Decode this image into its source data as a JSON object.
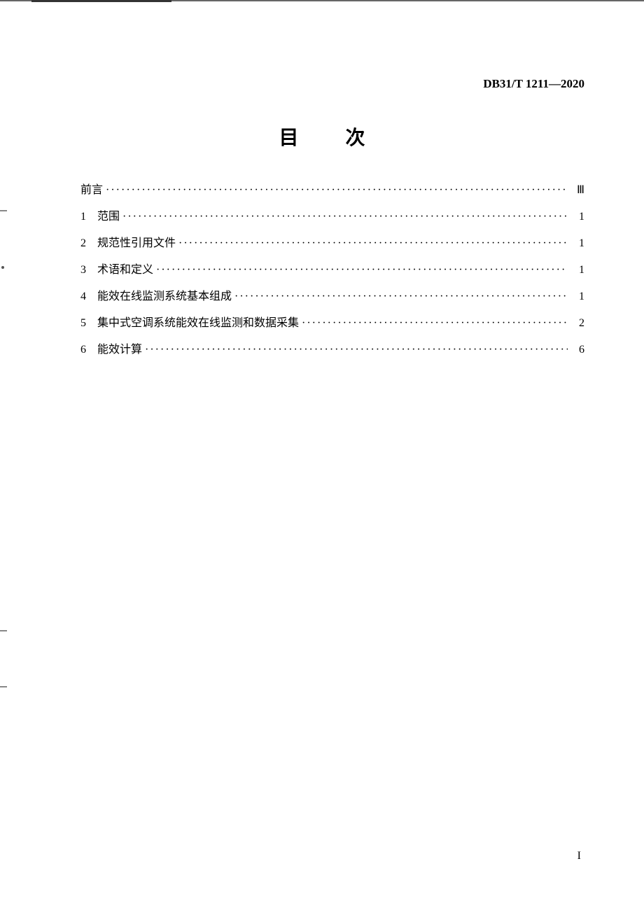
{
  "document": {
    "identifier": "DB31/T 1211—2020",
    "title": "目 次",
    "page_number": "I"
  },
  "toc": {
    "entries": [
      {
        "num": "",
        "text": "前言",
        "page": "Ⅲ"
      },
      {
        "num": "1",
        "text": "范围",
        "page": "1"
      },
      {
        "num": "2",
        "text": "规范性引用文件",
        "page": "1"
      },
      {
        "num": "3",
        "text": "术语和定义",
        "page": "1"
      },
      {
        "num": "4",
        "text": "能效在线监测系统基本组成",
        "page": "1"
      },
      {
        "num": "5",
        "text": "集中式空调系统能效在线监测和数据采集",
        "page": "2"
      },
      {
        "num": "6",
        "text": "能效计算",
        "page": "6"
      }
    ]
  },
  "styling": {
    "page_bg": "#ffffff",
    "text_color": "#000000",
    "title_fontsize": 28,
    "body_fontsize": 16,
    "doc_id_fontsize": 17,
    "footer_fontsize": 16,
    "leader_char": "·"
  }
}
